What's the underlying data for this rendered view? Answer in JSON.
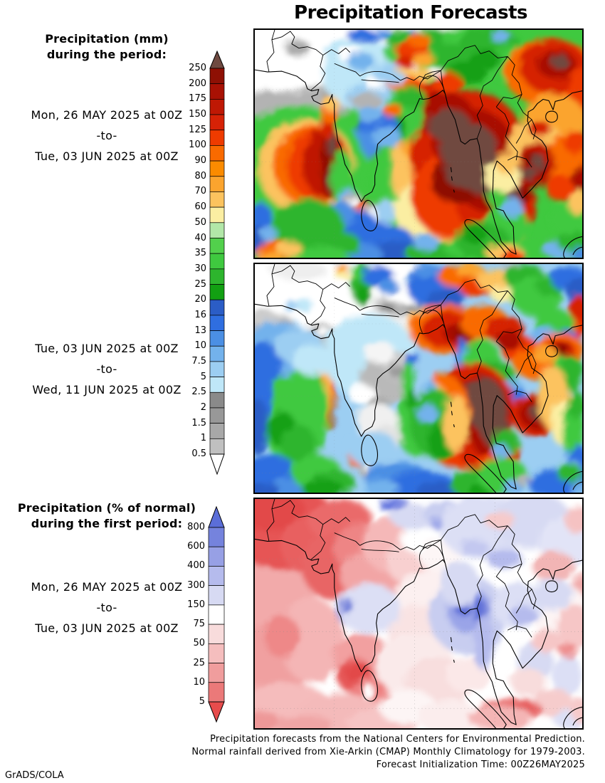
{
  "title": "Precipitation Forecasts",
  "left_column": {
    "mm_heading_line1": "Precipitation (mm)",
    "mm_heading_line2": "during the period:",
    "period1": {
      "from": "Mon, 26 MAY 2025 at 00Z",
      "separator": "-to-",
      "to": "Tue, 03 JUN 2025 at 00Z"
    },
    "period2": {
      "from": "Tue, 03 JUN 2025 at 00Z",
      "separator": "-to-",
      "to": "Wed, 11 JUN 2025 at 00Z"
    },
    "pct_heading_line1": "Precipitation (% of normal)",
    "pct_heading_line2": "during the first period:",
    "period3": {
      "from": "Mon, 26 MAY 2025 at 00Z",
      "separator": "-to-",
      "to": "Tue, 03 JUN 2025 at 00Z"
    }
  },
  "colorbar_mm": {
    "labels": [
      "250",
      "200",
      "175",
      "150",
      "125",
      "100",
      "90",
      "80",
      "70",
      "60",
      "50",
      "40",
      "35",
      "30",
      "25",
      "20",
      "16",
      "13",
      "10",
      "7.5",
      "5",
      "2.5",
      "2",
      "1.5",
      "1",
      "0.5"
    ],
    "arrow_top_color": "#6f4a41",
    "segment_colors": [
      "#8e1004",
      "#a81104",
      "#bf1804",
      "#d62206",
      "#ee3b00",
      "#f96a00",
      "#fb8b00",
      "#fba42e",
      "#fcc35e",
      "#fbeea2",
      "#b2e7a8",
      "#52d04c",
      "#3fc93f",
      "#2db52d",
      "#12a012",
      "#2b5dc6",
      "#2f6ee0",
      "#4b8fe4",
      "#73b2ec",
      "#9ccef2",
      "#bfe7f8",
      "#8a8a8a",
      "#989898",
      "#a8a8a8",
      "#c0c0c0"
    ],
    "arrow_bottom_color": "#ffffff"
  },
  "colorbar_pct": {
    "labels": [
      "800",
      "600",
      "400",
      "300",
      "150",
      "75",
      "50",
      "25",
      "10",
      "5"
    ],
    "arrow_top_color": "#5b6ed8",
    "segment_colors": [
      "#7583dd",
      "#97a0e5",
      "#b5bbed",
      "#d7daf3",
      "#ffffff",
      "#f8dcdc",
      "#f5bebe",
      "#f09d9d",
      "#eb7979"
    ],
    "arrow_bottom_color": "#e74c4c"
  },
  "footer": {
    "line1": "Precipitation forecasts from the National Centers for Environmental Prediction.",
    "line2": "Normal rainfall derived from Xie-Arkin (CMAP) Monthly Climatology for 1979-2003.",
    "line3": "Forecast Initialization Time: 00Z26MAY2025"
  },
  "credit": "GrADS/COLA"
}
